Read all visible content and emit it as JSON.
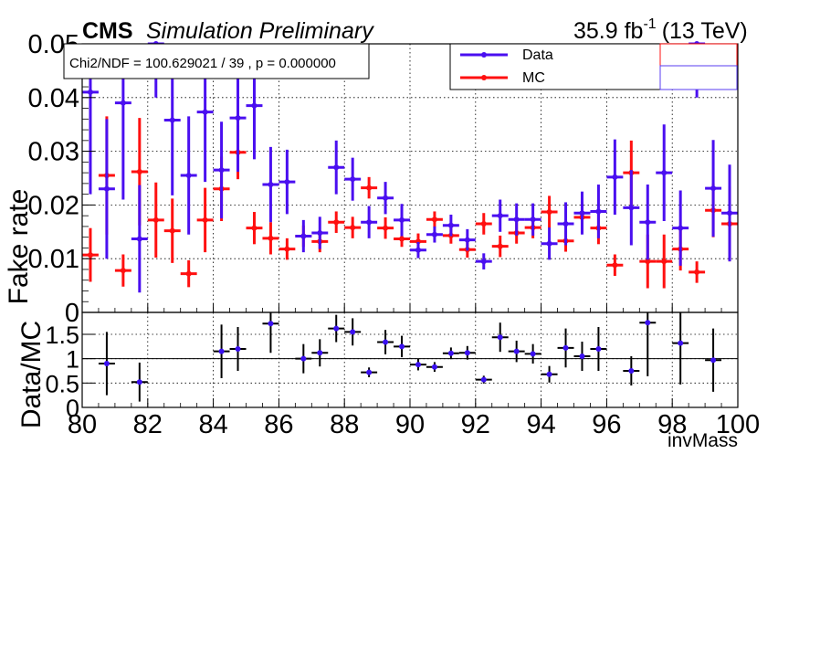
{
  "header": {
    "cms": "CMS",
    "simulation": "Simulation Preliminary",
    "lumi_value": "35.9 fb",
    "lumi_exp": "-1",
    "lumi_energy": "(13 TeV)"
  },
  "fit_text": "Chi2/NDF = 100.629021 / 39 , p = 0.000000",
  "colors": {
    "data": "#4a0ff0",
    "mc": "#ff1010",
    "ratio": "#000000",
    "ratio_marker": "#3a0ff0"
  },
  "chart_data": [
    {
      "type": "scatter",
      "ylabel": "Fake rate",
      "ylim": [
        0,
        0.05
      ],
      "xlim": [
        80,
        100
      ],
      "bin_width": 0.5,
      "y_ticks": [
        "0",
        "0.01",
        "0.02",
        "0.03",
        "0.04",
        "0.05"
      ],
      "grid": true,
      "legend": "top-right",
      "series": [
        {
          "name": "Data",
          "x": [
            80.25,
            80.75,
            81.25,
            81.75,
            82.25,
            82.75,
            83.25,
            83.75,
            84.25,
            84.75,
            85.25,
            85.75,
            86.25,
            86.75,
            87.25,
            87.75,
            88.25,
            88.75,
            89.25,
            89.75,
            90.25,
            90.75,
            91.25,
            91.75,
            92.25,
            92.75,
            93.25,
            93.75,
            94.25,
            94.75,
            95.25,
            95.75,
            96.25,
            96.75,
            97.25,
            97.75,
            98.25,
            98.75,
            99.25,
            99.75
          ],
          "y": [
            0.041,
            0.023,
            0.039,
            0.0137,
            0.05,
            0.0358,
            0.0255,
            0.0373,
            0.0265,
            0.0362,
            0.0385,
            0.0238,
            0.0243,
            0.0142,
            0.0148,
            0.027,
            0.0248,
            0.0168,
            0.0213,
            0.0172,
            0.0116,
            0.0145,
            0.0162,
            0.0135,
            0.0095,
            0.018,
            0.0173,
            0.0173,
            0.0128,
            0.0165,
            0.0185,
            0.0188,
            0.0252,
            0.0195,
            0.0168,
            0.026,
            0.0157,
            0.05,
            0.0231,
            0.0185
          ],
          "yerr": [
            0.019,
            0.013,
            0.018,
            0.01,
            0.01,
            0.014,
            0.011,
            0.013,
            0.009,
            0.01,
            0.01,
            0.007,
            0.006,
            0.003,
            0.003,
            0.005,
            0.004,
            0.003,
            0.003,
            0.003,
            0.0015,
            0.0015,
            0.002,
            0.002,
            0.0015,
            0.003,
            0.003,
            0.003,
            0.003,
            0.004,
            0.004,
            0.005,
            0.007,
            0.007,
            0.007,
            0.009,
            0.007,
            0.01,
            0.009,
            0.009
          ]
        },
        {
          "name": "MC",
          "x": [
            80.25,
            80.75,
            81.25,
            81.75,
            82.25,
            82.75,
            83.25,
            83.75,
            84.25,
            84.75,
            85.25,
            85.75,
            86.25,
            86.75,
            87.25,
            87.75,
            88.25,
            88.75,
            89.25,
            89.75,
            90.25,
            90.75,
            91.25,
            91.75,
            92.25,
            92.75,
            93.25,
            93.75,
            94.25,
            94.75,
            95.25,
            95.75,
            96.25,
            96.75,
            97.25,
            97.75,
            98.25,
            98.75,
            99.25,
            99.75
          ],
          "y": [
            0.0107,
            0.0255,
            0.0078,
            0.0262,
            0.0172,
            0.0152,
            0.0072,
            0.0172,
            0.023,
            0.0298,
            0.0157,
            0.0138,
            0.0118,
            0.0142,
            0.0132,
            0.0168,
            0.0158,
            0.0232,
            0.0157,
            0.0137,
            0.0132,
            0.0173,
            0.0143,
            0.0117,
            0.0165,
            0.0123,
            0.0148,
            0.0158,
            0.0187,
            0.0133,
            0.0177,
            0.0157,
            0.0088,
            0.026,
            0.0095,
            0.0095,
            0.0118,
            0.0075,
            0.019,
            0.0165
          ],
          "yerr": [
            0.005,
            0.011,
            0.003,
            0.01,
            0.007,
            0.006,
            0.0025,
            0.006,
            0.006,
            0.005,
            0.003,
            0.003,
            0.002,
            0.002,
            0.002,
            0.002,
            0.002,
            0.002,
            0.002,
            0.0015,
            0.0015,
            0.0015,
            0.0015,
            0.0015,
            0.002,
            0.002,
            0.002,
            0.002,
            0.003,
            0.002,
            0.003,
            0.003,
            0.002,
            0.006,
            0.005,
            0.005,
            0.004,
            0.002,
            0.005,
            0.007
          ]
        }
      ]
    },
    {
      "type": "scatter",
      "ylabel": "Data/MC",
      "xlabel": "invMass",
      "xlim": [
        80,
        100
      ],
      "ylim": [
        0,
        1.95
      ],
      "x_ticks": [
        "80",
        "82",
        "84",
        "86",
        "88",
        "90",
        "92",
        "94",
        "96",
        "98",
        "100"
      ],
      "y_ticks": [
        "0",
        "0.5",
        "1",
        "1.5"
      ],
      "reference_line": 1,
      "series": [
        {
          "x": [
            80.75,
            81.75,
            84.25,
            84.75,
            85.75,
            86.75,
            87.25,
            87.75,
            88.25,
            88.75,
            89.25,
            89.75,
            90.25,
            90.75,
            91.25,
            91.75,
            92.25,
            92.75,
            93.25,
            93.75,
            94.25,
            94.75,
            95.25,
            95.75,
            96.75,
            97.25,
            98.25,
            99.25
          ],
          "y": [
            0.9,
            0.52,
            1.15,
            1.2,
            1.72,
            1.0,
            1.12,
            1.62,
            1.55,
            0.72,
            1.34,
            1.25,
            0.88,
            0.83,
            1.11,
            1.12,
            0.57,
            1.44,
            1.15,
            1.1,
            0.68,
            1.22,
            1.05,
            1.2,
            0.75,
            1.74,
            1.32,
            0.97
          ],
          "yerr": [
            0.65,
            0.4,
            0.55,
            0.45,
            0.6,
            0.3,
            0.28,
            0.28,
            0.28,
            0.1,
            0.25,
            0.22,
            0.12,
            0.1,
            0.12,
            0.14,
            0.08,
            0.3,
            0.22,
            0.2,
            0.17,
            0.4,
            0.3,
            0.45,
            0.3,
            1.1,
            0.85,
            0.65
          ]
        }
      ]
    }
  ]
}
